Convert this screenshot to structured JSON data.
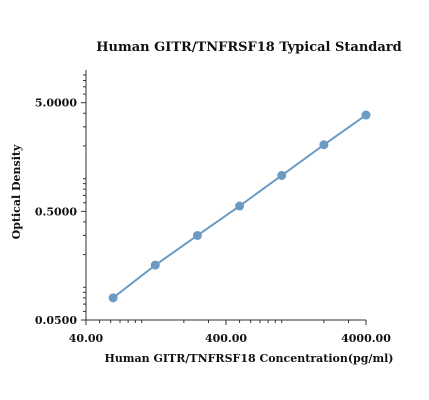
{
  "chart_data": {
    "type": "line",
    "title": "Human GITR/TNFRSF18 Typical Standard",
    "xlabel": "Human GITR/TNFRSF18  Concentration(pg/ml)",
    "ylabel": "Optical Density",
    "x_scale": "log",
    "y_scale": "log",
    "xlim": [
      40,
      4000
    ],
    "ylim": [
      0.05,
      10
    ],
    "x_ticks": [
      40,
      400,
      4000
    ],
    "x_tick_labels": [
      "40.00",
      "400.00",
      "4000.00"
    ],
    "y_ticks": [
      0.05,
      0.5,
      5
    ],
    "y_tick_labels": [
      "0.0500",
      "0.5000",
      "5.0000"
    ],
    "grid": false,
    "legend": "none",
    "series_color": "#6b9bc3",
    "series": [
      {
        "x": [
          62.5,
          125,
          250,
          500,
          1000,
          2000,
          4000
        ],
        "y": [
          0.08,
          0.16,
          0.3,
          0.56,
          1.07,
          2.05,
          3.85
        ]
      }
    ]
  }
}
